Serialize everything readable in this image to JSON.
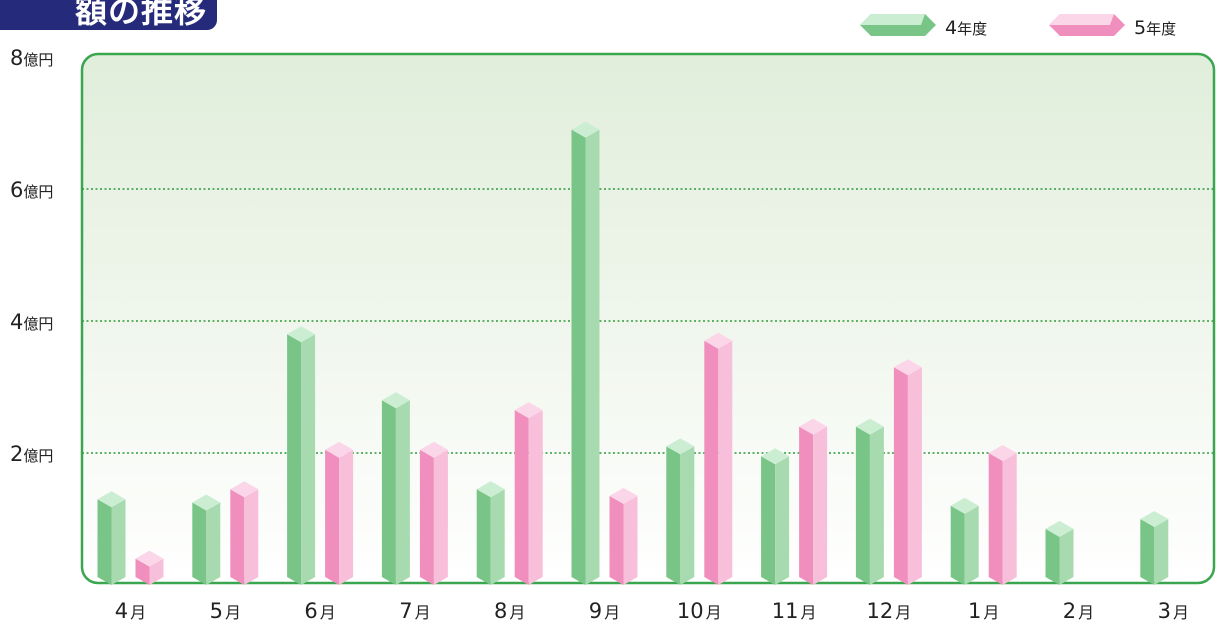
{
  "title": "額の推移",
  "colors": {
    "frame": "#3aa64f",
    "grid": "#2f9a3a",
    "series_2022": {
      "front": "#78c587",
      "side": "#a8dab0",
      "top": "#cbeed2"
    },
    "series_2023": {
      "front": "#f08fbe",
      "side": "#f7bfda",
      "top": "#fbd6e8"
    }
  },
  "chart_data": {
    "type": "bar",
    "categories": [
      "4月",
      "5月",
      "6月",
      "7月",
      "8月",
      "9月",
      "10月",
      "11月",
      "12月",
      "1月",
      "2月",
      "3月"
    ],
    "category_labels": [
      {
        "num": "4",
        "unit": "月"
      },
      {
        "num": "5",
        "unit": "月"
      },
      {
        "num": "6",
        "unit": "月"
      },
      {
        "num": "7",
        "unit": "月"
      },
      {
        "num": "8",
        "unit": "月"
      },
      {
        "num": "9",
        "unit": "月"
      },
      {
        "num": "10",
        "unit": "月"
      },
      {
        "num": "11",
        "unit": "月"
      },
      {
        "num": "12",
        "unit": "月"
      },
      {
        "num": "1",
        "unit": "月"
      },
      {
        "num": "2",
        "unit": "月"
      },
      {
        "num": "3",
        "unit": "月"
      }
    ],
    "series": [
      {
        "name": "4年度",
        "name_num": "4",
        "name_unit": "年度",
        "values": [
          1.3,
          1.25,
          3.8,
          2.8,
          1.45,
          6.9,
          2.1,
          1.95,
          2.4,
          1.2,
          0.85,
          1.0
        ]
      },
      {
        "name": "5年度",
        "name_num": "5",
        "name_unit": "年度",
        "values": [
          0.4,
          1.45,
          2.05,
          2.05,
          2.65,
          1.35,
          3.7,
          2.4,
          3.3,
          2.0,
          null,
          null
        ]
      }
    ],
    "y_ticks": [
      {
        "value": 2,
        "num": "2",
        "unit": "億円"
      },
      {
        "value": 4,
        "num": "4",
        "unit": "億円"
      },
      {
        "value": 6,
        "num": "6",
        "unit": "億円"
      },
      {
        "value": 8,
        "num": "8",
        "unit": "億円"
      }
    ],
    "ylim": [
      0,
      8
    ],
    "grid": true,
    "legend_position": "top-right"
  }
}
